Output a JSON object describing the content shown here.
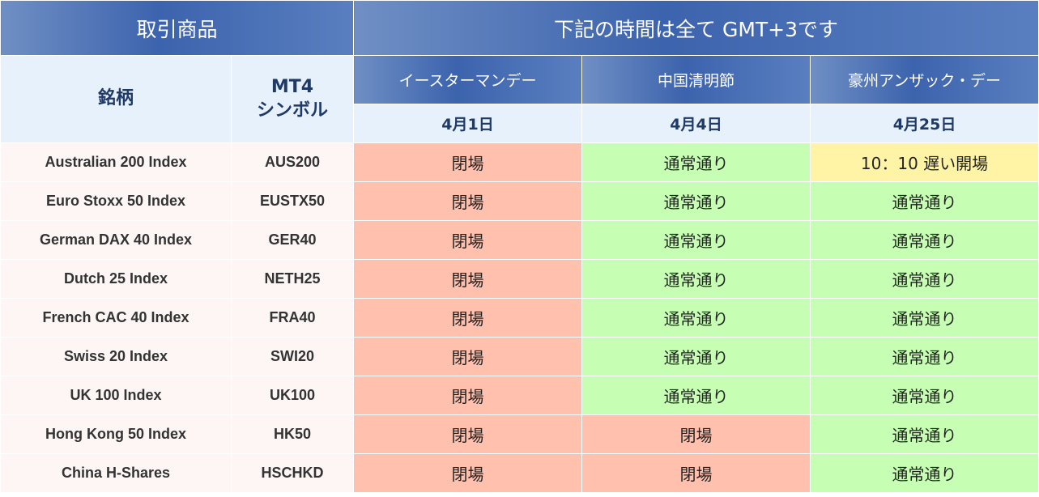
{
  "header": {
    "products_title": "取引商品",
    "time_note": "下記の時間は全て GMT+3です",
    "col_name": "銘柄",
    "col_symbol_line1": "MT4",
    "col_symbol_line2": "シンボル",
    "events": [
      {
        "name": "イースターマンデー",
        "date": "4月1日"
      },
      {
        "name": "中国清明節",
        "date": "4月4日"
      },
      {
        "name": "豪州アンザック・デー",
        "date": "4月25日"
      }
    ]
  },
  "rows": [
    {
      "name": "Australian 200 Index",
      "symbol": "AUS200",
      "statuses": [
        "閉場",
        "通常通り",
        "10：10 遅い開場"
      ],
      "kinds": [
        "closed",
        "normal",
        "late"
      ]
    },
    {
      "name": "Euro Stoxx 50 Index",
      "symbol": "EUSTX50",
      "statuses": [
        "閉場",
        "通常通り",
        "通常通り"
      ],
      "kinds": [
        "closed",
        "normal",
        "normal"
      ]
    },
    {
      "name": "German DAX 40 Index",
      "symbol": "GER40",
      "statuses": [
        "閉場",
        "通常通り",
        "通常通り"
      ],
      "kinds": [
        "closed",
        "normal",
        "normal"
      ]
    },
    {
      "name": "Dutch 25 Index",
      "symbol": "NETH25",
      "statuses": [
        "閉場",
        "通常通り",
        "通常通り"
      ],
      "kinds": [
        "closed",
        "normal",
        "normal"
      ]
    },
    {
      "name": "French CAC 40 Index",
      "symbol": "FRA40",
      "statuses": [
        "閉場",
        "通常通り",
        "通常通り"
      ],
      "kinds": [
        "closed",
        "normal",
        "normal"
      ]
    },
    {
      "name": "Swiss 20 Index",
      "symbol": "SWI20",
      "statuses": [
        "閉場",
        "通常通り",
        "通常通り"
      ],
      "kinds": [
        "closed",
        "normal",
        "normal"
      ]
    },
    {
      "name": "UK 100 Index",
      "symbol": "UK100",
      "statuses": [
        "閉場",
        "通常通り",
        "通常通り"
      ],
      "kinds": [
        "closed",
        "normal",
        "normal"
      ]
    },
    {
      "name": "Hong Kong 50 Index",
      "symbol": "HK50",
      "statuses": [
        "閉場",
        "閉場",
        "通常通り"
      ],
      "kinds": [
        "closed",
        "closed",
        "normal"
      ]
    },
    {
      "name": "China H-Shares",
      "symbol": "HSCHKD",
      "statuses": [
        "閉場",
        "閉場",
        "通常通り"
      ],
      "kinds": [
        "closed",
        "closed",
        "normal"
      ]
    }
  ],
  "colors": {
    "header_blue": "#3c63ad",
    "header_light": "#e6f1fb",
    "closed": "#ffc0ae",
    "normal": "#c6ffb4",
    "late_open": "#fff4a6"
  }
}
